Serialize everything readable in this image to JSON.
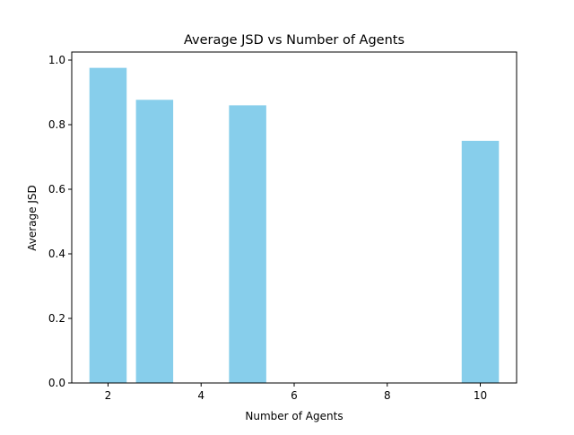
{
  "chart_data": {
    "type": "bar",
    "title": "Average JSD vs Number of Agents",
    "xlabel": "Number of Agents",
    "ylabel": "Average JSD",
    "x": [
      2,
      3,
      5,
      10
    ],
    "values": [
      0.976,
      0.877,
      0.86,
      0.75
    ],
    "bar_width": 0.8,
    "xlim": [
      1.22,
      10.78
    ],
    "ylim": [
      0,
      1.025
    ],
    "xticks": [
      2,
      4,
      6,
      8,
      10
    ],
    "yticks": [
      0.0,
      0.2,
      0.4,
      0.6,
      0.8,
      1.0
    ],
    "xtick_labels": [
      "2",
      "4",
      "6",
      "8",
      "10"
    ],
    "ytick_labels": [
      "0.0",
      "0.2",
      "0.4",
      "0.6",
      "0.8",
      "1.0"
    ],
    "bar_color": "#87ceeb",
    "grid": false,
    "legend": "none"
  }
}
